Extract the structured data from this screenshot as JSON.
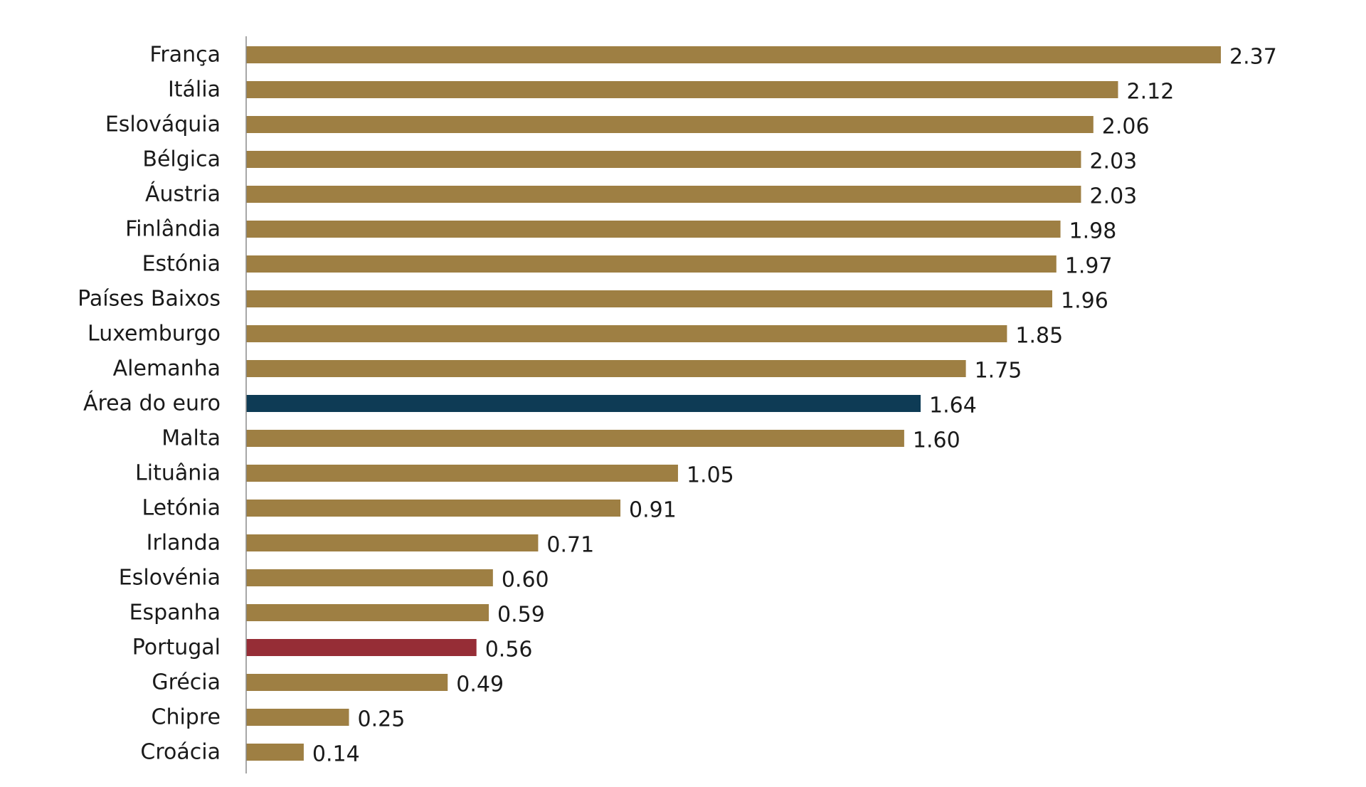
{
  "chart_data": {
    "type": "bar",
    "orientation": "horizontal",
    "title": "",
    "xlabel": "",
    "ylabel": "",
    "xlim": [
      0,
      2.37
    ],
    "grid": false,
    "legend": "none",
    "categories": [
      "França",
      "Itália",
      "Eslováquia",
      "Bélgica",
      "Áustria",
      "Finlândia",
      "Estónia",
      "Países Baixos",
      "Luxemburgo",
      "Alemanha",
      "Área do euro",
      "Malta",
      "Lituânia",
      "Letónia",
      "Irlanda",
      "Eslovénia",
      "Espanha",
      "Portugal",
      "Grécia",
      "Chipre",
      "Croácia"
    ],
    "values": [
      2.37,
      2.12,
      2.06,
      2.03,
      2.03,
      1.98,
      1.97,
      1.96,
      1.85,
      1.75,
      1.64,
      1.6,
      1.05,
      0.91,
      0.71,
      0.6,
      0.59,
      0.56,
      0.49,
      0.25,
      0.14
    ],
    "value_labels": [
      "2.37",
      "2.12",
      "2.06",
      "2.03",
      "2.03",
      "1.98",
      "1.97",
      "1.96",
      "1.85",
      "1.75",
      "1.64",
      "1.60",
      "1.05",
      "0.91",
      "0.71",
      "0.60",
      "0.59",
      "0.56",
      "0.49",
      "0.25",
      "0.14"
    ],
    "colors": {
      "default": "#9E7F43",
      "Área do euro": "#0E3B55",
      "Portugal": "#962D36",
      "axis": "#8a8a8a"
    }
  }
}
